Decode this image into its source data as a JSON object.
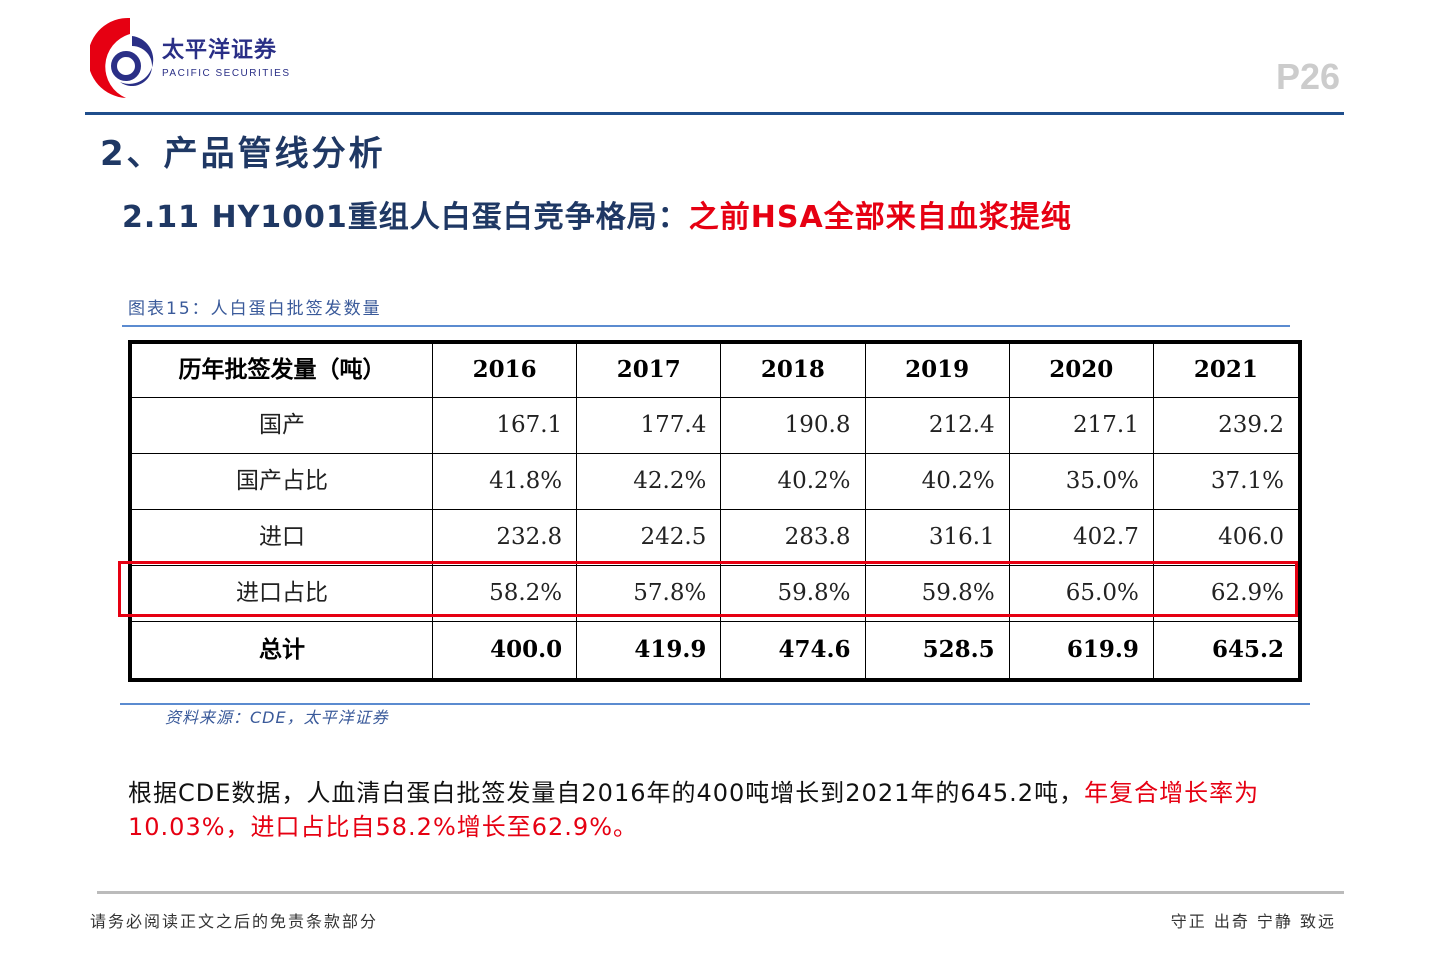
{
  "header": {
    "brand_cn": "太平洋证券",
    "brand_en": "PACIFIC SECURITIES",
    "page": "P26"
  },
  "section_title": "2、产品管线分析",
  "subtitle": {
    "blue": "2.11 HY1001重组人白蛋白竞争格局：",
    "red": "之前HSA全部来自血浆提纯"
  },
  "caption": "图表15：人白蛋白批签发数量",
  "table": {
    "header": [
      "历年批签发量（吨）",
      "2016",
      "2017",
      "2018",
      "2019",
      "2020",
      "2021"
    ],
    "rows": [
      [
        "国产",
        "167.1",
        "177.4",
        "190.8",
        "212.4",
        "217.1",
        "239.2"
      ],
      [
        "国产占比",
        "41.8%",
        "42.2%",
        "40.2%",
        "40.2%",
        "35.0%",
        "37.1%"
      ],
      [
        "进口",
        "232.8",
        "242.5",
        "283.8",
        "316.1",
        "402.7",
        "406.0"
      ],
      [
        "进口占比",
        "58.2%",
        "57.8%",
        "59.8%",
        "59.8%",
        "65.0%",
        "62.9%"
      ],
      [
        "总计",
        "400.0",
        "419.9",
        "474.6",
        "528.5",
        "619.9",
        "645.2"
      ]
    ]
  },
  "source": "资料来源：CDE，太平洋证券",
  "body": {
    "black": "根据CDE数据，人血清白蛋白批签发量自2016年的400吨增长到2021年的645.2吨，",
    "red": "年复合增长率为10.03%，进口占比自58.2%增长至62.9%。"
  },
  "footer": {
    "disclaimer": "请务必阅读正文之后的免责条款部分",
    "motto": "守正 出奇 宁静 致远"
  }
}
